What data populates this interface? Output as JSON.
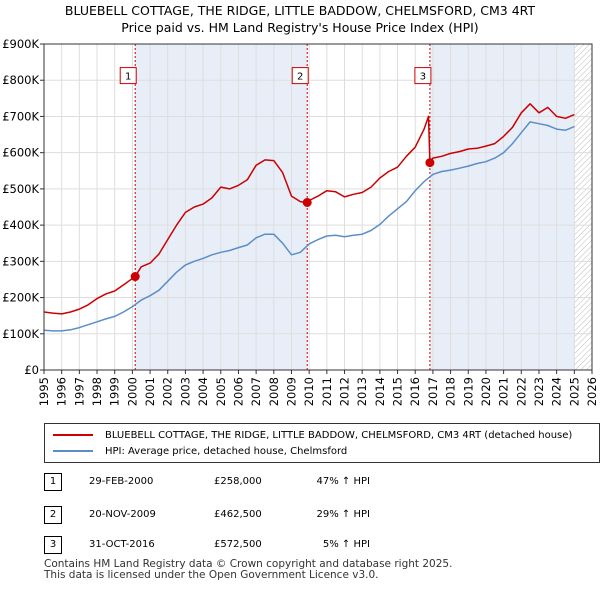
{
  "chart_data": {
    "type": "line",
    "title": "BLUEBELL COTTAGE, THE RIDGE, LITTLE BADDOW, CHELMSFORD, CM3 4RT",
    "subtitle": "Price paid vs. HM Land Registry's House Price Index (HPI)",
    "xlim": [
      1995,
      2026
    ],
    "ylim": [
      0,
      900000
    ],
    "x_ticks": [
      "1995",
      "1996",
      "1997",
      "1998",
      "1999",
      "2000",
      "2001",
      "2002",
      "2003",
      "2004",
      "2005",
      "2006",
      "2007",
      "2008",
      "2009",
      "2010",
      "2011",
      "2012",
      "2013",
      "2014",
      "2015",
      "2016",
      "2017",
      "2018",
      "2019",
      "2020",
      "2021",
      "2022",
      "2023",
      "2024",
      "2025",
      "2026"
    ],
    "y_ticks": [
      {
        "value": 0,
        "label": "£0"
      },
      {
        "value": 100000,
        "label": "£100K"
      },
      {
        "value": 200000,
        "label": "£200K"
      },
      {
        "value": 300000,
        "label": "£300K"
      },
      {
        "value": 400000,
        "label": "£400K"
      },
      {
        "value": 500000,
        "label": "£500K"
      },
      {
        "value": 600000,
        "label": "£600K"
      },
      {
        "value": 700000,
        "label": "£700K"
      },
      {
        "value": 800000,
        "label": "£800K"
      },
      {
        "value": 900000,
        "label": "£900K"
      }
    ],
    "grid": true,
    "shaded_periods": [
      [
        2000.16,
        2009.89
      ],
      [
        2016.83,
        2025.0
      ]
    ],
    "hatched_future_from": 2025.0,
    "series": [
      {
        "name": "BLUEBELL COTTAGE, THE RIDGE, LITTLE BADDOW, CHELMSFORD, CM3 4RT (detached house)",
        "color": "#cc0000",
        "x": [
          1995.0,
          1995.5,
          1996.0,
          1996.5,
          1997.0,
          1997.5,
          1998.0,
          1998.5,
          1999.0,
          1999.5,
          2000.16,
          2000.5,
          2001.0,
          2001.5,
          2002.0,
          2002.5,
          2003.0,
          2003.5,
          2004.0,
          2004.5,
          2005.0,
          2005.5,
          2006.0,
          2006.5,
          2007.0,
          2007.5,
          2008.0,
          2008.5,
          2009.0,
          2009.5,
          2009.89,
          2010.0,
          2010.5,
          2011.0,
          2011.5,
          2012.0,
          2012.5,
          2013.0,
          2013.5,
          2014.0,
          2014.5,
          2015.0,
          2015.5,
          2016.0,
          2016.5,
          2016.75,
          2016.83,
          2017.0,
          2017.5,
          2018.0,
          2018.5,
          2019.0,
          2019.5,
          2020.0,
          2020.5,
          2021.0,
          2021.5,
          2022.0,
          2022.5,
          2023.0,
          2023.5,
          2024.0,
          2024.5,
          2025.0
        ],
        "values": [
          160000,
          157000,
          155000,
          160000,
          168000,
          180000,
          197000,
          210000,
          218000,
          235000,
          258000,
          285000,
          295000,
          320000,
          360000,
          400000,
          435000,
          450000,
          458000,
          475000,
          505000,
          500000,
          510000,
          525000,
          565000,
          580000,
          578000,
          545000,
          480000,
          465000,
          462500,
          468000,
          480000,
          495000,
          492000,
          478000,
          485000,
          490000,
          505000,
          530000,
          548000,
          560000,
          590000,
          615000,
          665000,
          700000,
          572500,
          585000,
          590000,
          598000,
          603000,
          610000,
          612000,
          618000,
          625000,
          645000,
          670000,
          710000,
          735000,
          710000,
          725000,
          700000,
          695000,
          705000
        ]
      },
      {
        "name": "HPI: Average price, detached house, Chelmsford",
        "color": "#5b8ec9",
        "x": [
          1995.0,
          1995.5,
          1996.0,
          1996.5,
          1997.0,
          1997.5,
          1998.0,
          1998.5,
          1999.0,
          1999.5,
          2000.0,
          2000.5,
          2001.0,
          2001.5,
          2002.0,
          2002.5,
          2003.0,
          2003.5,
          2004.0,
          2004.5,
          2005.0,
          2005.5,
          2006.0,
          2006.5,
          2007.0,
          2007.5,
          2008.0,
          2008.5,
          2009.0,
          2009.5,
          2010.0,
          2010.5,
          2011.0,
          2011.5,
          2012.0,
          2012.5,
          2013.0,
          2013.5,
          2014.0,
          2014.5,
          2015.0,
          2015.5,
          2016.0,
          2016.5,
          2017.0,
          2017.5,
          2018.0,
          2018.5,
          2019.0,
          2019.5,
          2020.0,
          2020.5,
          2021.0,
          2021.5,
          2022.0,
          2022.5,
          2023.0,
          2023.5,
          2024.0,
          2024.5,
          2025.0
        ],
        "values": [
          110000,
          108000,
          108000,
          111000,
          117000,
          125000,
          133000,
          141000,
          148000,
          160000,
          175000,
          193000,
          205000,
          220000,
          245000,
          270000,
          290000,
          300000,
          308000,
          318000,
          325000,
          330000,
          338000,
          345000,
          365000,
          375000,
          375000,
          350000,
          318000,
          325000,
          348000,
          360000,
          370000,
          372000,
          368000,
          372000,
          375000,
          385000,
          402000,
          425000,
          445000,
          465000,
          495000,
          520000,
          540000,
          548000,
          552000,
          557000,
          563000,
          570000,
          575000,
          585000,
          600000,
          625000,
          655000,
          685000,
          680000,
          675000,
          665000,
          662000,
          672000
        ]
      }
    ],
    "sale_markers": [
      {
        "label": "1",
        "x": 2000.16,
        "value": 258000
      },
      {
        "label": "2",
        "x": 2009.89,
        "value": 462500
      },
      {
        "label": "3",
        "x": 2016.83,
        "value": 572500
      }
    ]
  },
  "legend": {
    "property_label": "BLUEBELL COTTAGE, THE RIDGE, LITTLE BADDOW, CHELMSFORD, CM3 4RT (detached house)",
    "hpi_label": "HPI: Average price, detached house, Chelmsford",
    "property_color": "#cc0000",
    "hpi_color": "#5b8ec9"
  },
  "sales": [
    {
      "num": "1",
      "date": "29-FEB-2000",
      "price": "£258,000",
      "hpi": "47% ↑ HPI"
    },
    {
      "num": "2",
      "date": "20-NOV-2009",
      "price": "£462,500",
      "hpi": "29% ↑ HPI"
    },
    {
      "num": "3",
      "date": "31-OCT-2016",
      "price": "£572,500",
      "hpi": "5% ↑ HPI"
    }
  ],
  "footer": {
    "line1": "Contains HM Land Registry data © Crown copyright and database right 2025.",
    "line2": "This data is licensed under the Open Government Licence v3.0."
  }
}
